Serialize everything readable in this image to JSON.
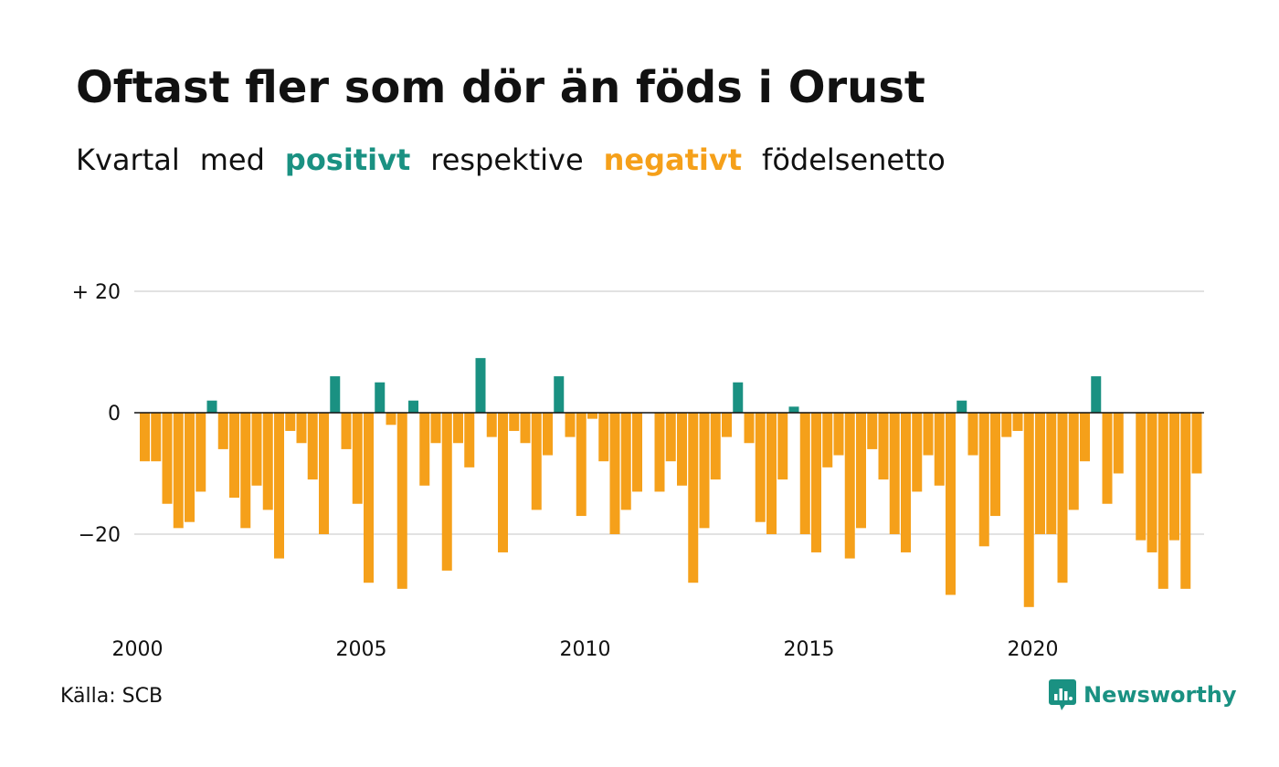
{
  "title": "Oftast fler som dör än föds i Orust",
  "subtitle": {
    "part1": "Kvartal",
    "part2": "med",
    "positive": "positivt",
    "part3": "respektive",
    "negative": "negativt",
    "part4": "födelsenetto"
  },
  "source": "Källa: SCB",
  "brand": {
    "name": "Newsworthy",
    "icon": "newsworthy-logo-icon"
  },
  "colors": {
    "positive": "#1a9182",
    "negative": "#f5a01a",
    "grid": "#e2e2e2",
    "zero": "#111111"
  },
  "chart_data": {
    "type": "bar",
    "title": "Oftast fler som dör än föds i Orust",
    "subtitle": "Kvartal med positivt respektive negativt födelsenetto",
    "x_start": {
      "year": 2000,
      "quarter": 1
    },
    "x_ticks": [
      "2000",
      "2005",
      "2010",
      "2015",
      "2020"
    ],
    "y_ticks": [
      {
        "value": 20,
        "label": "+ 20"
      },
      {
        "value": 0,
        "label": "0"
      },
      {
        "value": -20,
        "label": "−20"
      }
    ],
    "ylim": [
      -33,
      20
    ],
    "grid": true,
    "values": [
      -8,
      -8,
      -15,
      -19,
      -18,
      -13,
      2,
      -6,
      -14,
      -19,
      -12,
      -16,
      -24,
      -3,
      -5,
      -11,
      -20,
      6,
      -6,
      -15,
      -28,
      5,
      -2,
      -29,
      2,
      -12,
      -5,
      -26,
      -5,
      -9,
      9,
      -4,
      -23,
      -3,
      -5,
      -16,
      -7,
      6,
      -4,
      -17,
      -1,
      -8,
      -20,
      -16,
      -13,
      null,
      -13,
      -8,
      -12,
      -28,
      -19,
      -11,
      -4,
      5,
      -5,
      -18,
      -20,
      -11,
      1,
      -20,
      -23,
      -9,
      -7,
      -24,
      -19,
      -6,
      -11,
      -20,
      -23,
      -13,
      -7,
      -12,
      -30,
      2,
      -7,
      -22,
      -17,
      -4,
      -3,
      -32,
      -20,
      -20,
      -28,
      -16,
      -8,
      6,
      -15,
      -10,
      null,
      -21,
      -23,
      -29,
      -21,
      -29,
      -10
    ]
  }
}
